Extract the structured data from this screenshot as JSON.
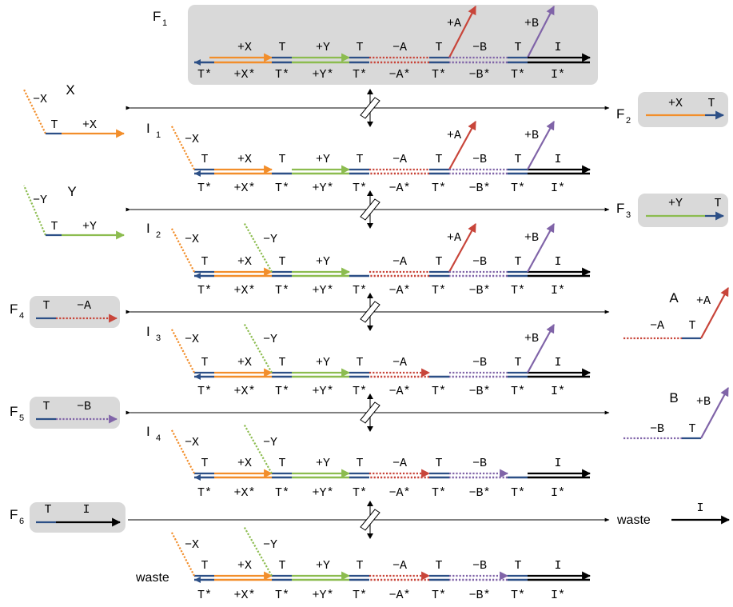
{
  "colors": {
    "x_strand": "#f28e2b",
    "y_strand": "#8cbc4f",
    "a_strand": "#c8453a",
    "b_strand": "#8064a8",
    "toehold": "#2c4f86",
    "input_strand": "#000000",
    "box_fill": "#d9d9d9",
    "text": "#000000"
  },
  "labels": {
    "F": "F",
    "I": "I",
    "T": "T",
    "Tstar": "T*",
    "X": "X",
    "Y": "Y",
    "A": "A",
    "B": "B",
    "pX": "+X",
    "pY": "+Y",
    "pA": "+A",
    "pB": "+B",
    "mX": "−X",
    "mY": "−Y",
    "mA": "−A",
    "mB": "−B",
    "pXs": "+X*",
    "pYs": "+Y*",
    "mAs": "−A*",
    "mBs": "−B*",
    "Is": "I*",
    "waste": "waste",
    "sub1": "1",
    "sub2": "2",
    "sub3": "3",
    "sub4": "4",
    "sub5": "5",
    "sub6": "6"
  }
}
